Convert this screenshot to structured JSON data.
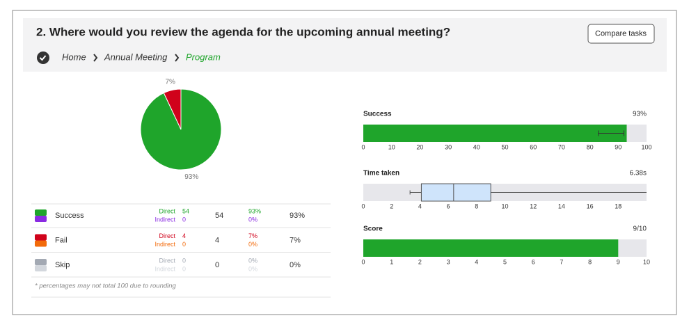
{
  "header": {
    "title": "2. Where would you review the agenda for the upcoming annual meeting?",
    "button": "Compare tasks"
  },
  "breadcrumb": [
    "Home",
    "Annual Meeting",
    "Program"
  ],
  "chart_data": [
    {
      "type": "pie",
      "values": [
        93,
        7
      ],
      "value_labels": [
        "93%",
        "7%"
      ],
      "colors": [
        "#1fa52b",
        "#d0021b"
      ]
    },
    {
      "type": "bar",
      "title": "Success",
      "values": [
        93
      ],
      "value_labels": [
        "93%"
      ],
      "ci": [
        [
          83,
          92
        ]
      ],
      "color": "#1fa52b",
      "xlim": [
        0,
        100
      ],
      "xticks": [
        0,
        10,
        20,
        30,
        40,
        50,
        60,
        70,
        80,
        90,
        100
      ]
    },
    {
      "type": "box",
      "title": "Time taken",
      "min": 3.3,
      "q1": 4.1,
      "median": 6.38,
      "q3": 9.0,
      "max": 20,
      "median_label": "6.38s",
      "color": "#cfe4fb",
      "xlim": [
        0,
        20
      ],
      "xticks": [
        0,
        2,
        4,
        6,
        8,
        10,
        12,
        14,
        16,
        18
      ]
    },
    {
      "type": "bar",
      "title": "Score",
      "values": [
        9
      ],
      "value_labels": [
        "9/10"
      ],
      "color": "#1fa52b",
      "xlim": [
        0,
        10
      ],
      "xticks": [
        0,
        1,
        2,
        3,
        4,
        5,
        6,
        7,
        8,
        9,
        10
      ]
    }
  ],
  "table": {
    "rows": [
      {
        "name": "Success",
        "colors": [
          "#1fa52b",
          "#8a2be2"
        ],
        "direct_label": "Direct",
        "direct": 54,
        "indirect_label": "Indirect",
        "indirect": 0,
        "total": 54,
        "direct_pct": "93%",
        "indirect_pct": "0%",
        "total_pct": "93%"
      },
      {
        "name": "Fail",
        "colors": [
          "#d0021b",
          "#f26a0a"
        ],
        "direct_label": "Direct",
        "direct": 4,
        "indirect_label": "Indirect",
        "indirect": 0,
        "total": 4,
        "direct_pct": "7%",
        "indirect_pct": "0%",
        "total_pct": "7%"
      },
      {
        "name": "Skip",
        "colors": [
          "#a3a9b3",
          "#d3d7dd"
        ],
        "direct_label": "Direct",
        "direct": 0,
        "indirect_label": "Indirect",
        "indirect": 0,
        "total": 0,
        "direct_pct": "0%",
        "indirect_pct": "0%",
        "total_pct": "0%"
      }
    ],
    "footnote": "* percentages may not total 100 due to rounding"
  }
}
